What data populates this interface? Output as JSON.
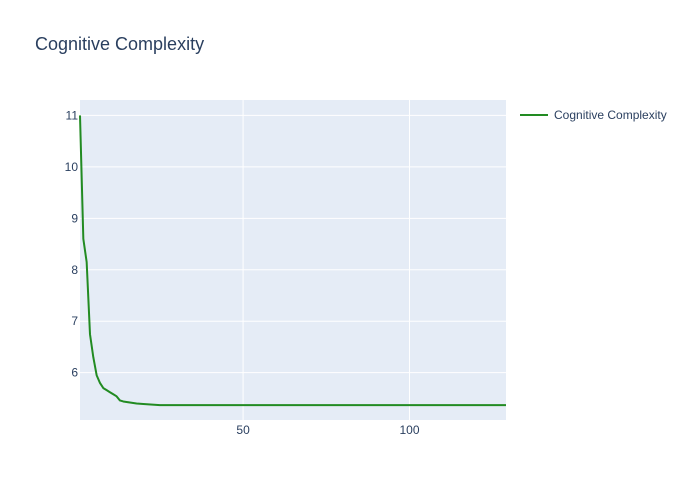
{
  "chart_data": {
    "type": "line",
    "title": "Cognitive Complexity",
    "xlabel": "",
    "ylabel": "",
    "xlim": [
      1,
      129
    ],
    "ylim": [
      5.08,
      11.3
    ],
    "x_ticks": [
      50,
      100
    ],
    "y_ticks": [
      6,
      7,
      8,
      9,
      10,
      11
    ],
    "grid": true,
    "legend_position": "right",
    "colors": {
      "plot_bg": "#e5ecf6",
      "grid": "#ffffff",
      "text": "#2a3f5f"
    },
    "series": [
      {
        "name": "Cognitive Complexity",
        "color": "#228b22",
        "x": [
          1,
          2,
          3,
          4,
          5,
          6,
          7,
          8,
          9,
          10,
          11,
          12,
          13,
          14,
          15,
          16,
          18,
          20,
          25,
          30,
          40,
          50,
          60,
          70,
          80,
          90,
          100,
          110,
          120,
          129
        ],
        "y": [
          11.0,
          8.6,
          8.15,
          6.75,
          6.3,
          5.95,
          5.8,
          5.7,
          5.66,
          5.62,
          5.58,
          5.54,
          5.46,
          5.44,
          5.43,
          5.42,
          5.4,
          5.39,
          5.37,
          5.37,
          5.37,
          5.37,
          5.37,
          5.37,
          5.37,
          5.37,
          5.37,
          5.37,
          5.37,
          5.37
        ]
      }
    ]
  }
}
